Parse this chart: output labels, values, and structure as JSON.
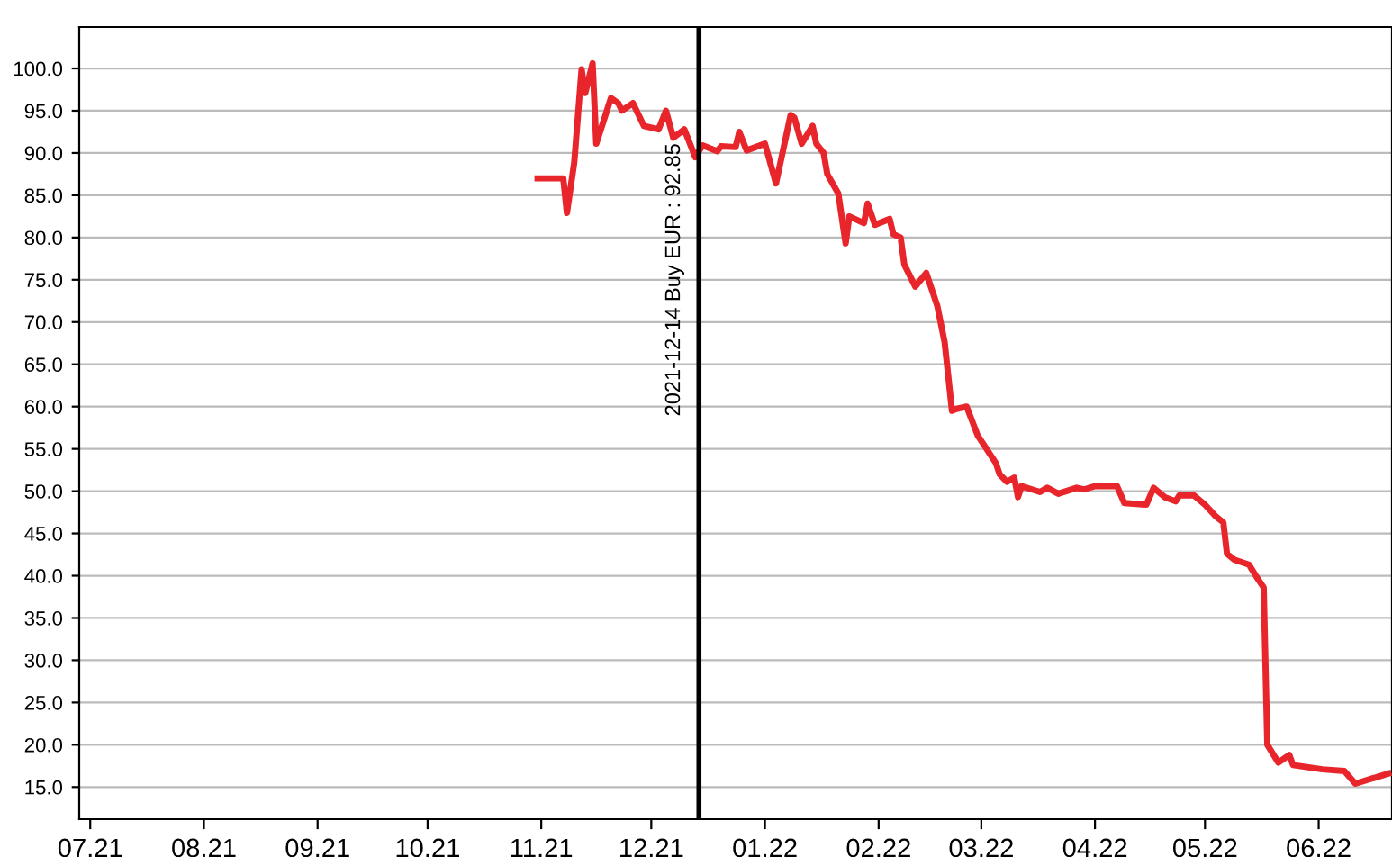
{
  "chart_data": {
    "type": "line",
    "x": [
      "2021-10-31",
      "2021-11-07",
      "2021-11-08",
      "2021-11-10",
      "2021-11-12",
      "2021-11-13",
      "2021-11-15",
      "2021-11-16",
      "2021-11-20",
      "2021-11-22",
      "2021-11-23",
      "2021-11-26",
      "2021-11-29",
      "2021-12-03",
      "2021-12-05",
      "2021-12-07",
      "2021-12-10",
      "2021-12-13",
      "2021-12-15",
      "2021-12-19",
      "2021-12-20",
      "2021-12-24",
      "2021-12-25",
      "2021-12-27",
      "2022-01-01",
      "2022-01-04",
      "2022-01-08",
      "2022-01-09",
      "2022-01-11",
      "2022-01-14",
      "2022-01-15",
      "2022-01-17",
      "2022-01-18",
      "2022-01-21",
      "2022-01-23",
      "2022-01-24",
      "2022-01-28",
      "2022-01-29",
      "2022-01-31",
      "2022-02-04",
      "2022-02-05",
      "2022-02-07",
      "2022-02-08",
      "2022-02-11",
      "2022-02-14",
      "2022-02-17",
      "2022-02-19",
      "2022-02-21",
      "2022-02-22",
      "2022-02-25",
      "2022-02-28",
      "2022-03-05",
      "2022-03-06",
      "2022-03-08",
      "2022-03-10",
      "2022-03-11",
      "2022-03-12",
      "2022-03-17",
      "2022-03-19",
      "2022-03-22",
      "2022-03-27",
      "2022-03-29",
      "2022-04-01",
      "2022-04-07",
      "2022-04-09",
      "2022-04-15",
      "2022-04-17",
      "2022-04-20",
      "2022-04-23",
      "2022-04-24",
      "2022-04-28",
      "2022-05-01",
      "2022-05-04",
      "2022-05-06",
      "2022-05-07",
      "2022-05-09",
      "2022-05-13",
      "2022-05-15",
      "2022-05-17",
      "2022-05-18",
      "2022-05-21",
      "2022-05-24",
      "2022-05-25",
      "2022-06-02",
      "2022-06-08",
      "2022-06-11",
      "2022-06-20"
    ],
    "series": [
      {
        "color": "#e8252a",
        "values": [
          87.0,
          87.0,
          82.9,
          88.9,
          99.9,
          97.1,
          100.6,
          91.1,
          96.5,
          95.9,
          95.0,
          95.9,
          93.2,
          92.8,
          95.0,
          91.8,
          92.8,
          89.5,
          90.9,
          90.2,
          90.8,
          90.7,
          92.5,
          90.3,
          91.1,
          86.4,
          94.5,
          94.2,
          91.1,
          93.2,
          91.1,
          90.0,
          87.5,
          85.2,
          79.3,
          82.5,
          81.7,
          84.0,
          81.5,
          82.2,
          80.4,
          80.0,
          76.8,
          74.2,
          75.8,
          71.9,
          67.6,
          59.5,
          59.7,
          60.0,
          56.6,
          53.3,
          52.0,
          51.1,
          51.6,
          49.3,
          50.6,
          49.9,
          50.4,
          49.7,
          50.4,
          50.2,
          50.6,
          50.6,
          48.6,
          48.4,
          50.4,
          49.3,
          48.8,
          49.5,
          49.5,
          48.4,
          47.0,
          46.3,
          42.6,
          41.9,
          41.3,
          39.9,
          38.6,
          20.0,
          17.9,
          18.8,
          17.6,
          17.1,
          16.9,
          15.4,
          16.6
        ]
      }
    ],
    "xlim": [
      "2021-06-28",
      "2022-06-21"
    ],
    "xticks": [
      {
        "value": "2021-07-01",
        "label": "07.21"
      },
      {
        "value": "2021-08-01",
        "label": "08.21"
      },
      {
        "value": "2021-09-01",
        "label": "09.21"
      },
      {
        "value": "2021-10-01",
        "label": "10.21"
      },
      {
        "value": "2021-11-01",
        "label": "11.21"
      },
      {
        "value": "2021-12-01",
        "label": "12.21"
      },
      {
        "value": "2022-01-01",
        "label": "01.22"
      },
      {
        "value": "2022-02-01",
        "label": "02.22"
      },
      {
        "value": "2022-03-01",
        "label": "03.22"
      },
      {
        "value": "2022-04-01",
        "label": "04.22"
      },
      {
        "value": "2022-05-01",
        "label": "05.22"
      },
      {
        "value": "2022-06-01",
        "label": "06.22"
      }
    ],
    "ylim": [
      11.2,
      104.9
    ],
    "yticks": [
      {
        "value": 15,
        "label": "15.0"
      },
      {
        "value": 20,
        "label": "20.0"
      },
      {
        "value": 25,
        "label": "25.0"
      },
      {
        "value": 30,
        "label": "30.0"
      },
      {
        "value": 35,
        "label": "35.0"
      },
      {
        "value": 40,
        "label": "40.0"
      },
      {
        "value": 45,
        "label": "45.0"
      },
      {
        "value": 50,
        "label": "50.0"
      },
      {
        "value": 55,
        "label": "55.0"
      },
      {
        "value": 60,
        "label": "60.0"
      },
      {
        "value": 65,
        "label": "65.0"
      },
      {
        "value": 70,
        "label": "70.0"
      },
      {
        "value": 75,
        "label": "75.0"
      },
      {
        "value": 80,
        "label": "80.0"
      },
      {
        "value": 85,
        "label": "85.0"
      },
      {
        "value": 90,
        "label": "90.0"
      },
      {
        "value": 95,
        "label": "95.0"
      },
      {
        "value": 100,
        "label": "100.0"
      }
    ],
    "ref_lines": [
      {
        "axis": "x",
        "value": "2021-12-14",
        "label": "2021-12-14 Buy EUR : 92.85",
        "color": "#000000",
        "line_style": "solid"
      }
    ],
    "grid": "y",
    "legend": false,
    "marker": "none",
    "line_style": "solid"
  }
}
